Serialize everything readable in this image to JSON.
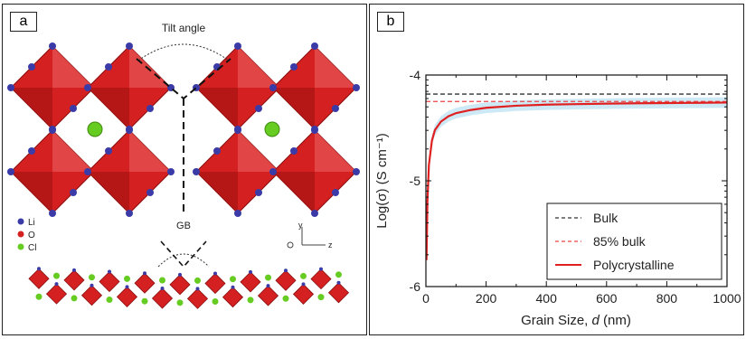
{
  "panel_a": {
    "label": "a",
    "tilt_label": "Tilt angle",
    "gb_label": "GB",
    "axis_y": "y",
    "axis_z": "z",
    "legend": [
      {
        "symbol": "Li",
        "color": "#3b3ba8"
      },
      {
        "symbol": "O",
        "color": "#d42020"
      },
      {
        "symbol": "Cl",
        "color": "#66cc22"
      }
    ]
  },
  "panel_b": {
    "label": "b"
  },
  "chart_data": {
    "type": "line",
    "xlabel_parts": [
      "Grain Size, ",
      "d",
      " (nm)"
    ],
    "ylabel": "Log(σ) (S cm⁻¹)",
    "xlim": [
      0,
      1000
    ],
    "ylim": [
      -6,
      -4
    ],
    "xticks": [
      "0",
      "200",
      "400",
      "600",
      "800",
      "1000"
    ],
    "yticks": [
      "-4",
      "-5",
      "-6"
    ],
    "legend_position": "lower-right",
    "series": [
      {
        "name": "Bulk",
        "style": "dashed",
        "color": "#333333",
        "x": [
          0,
          1000
        ],
        "y": [
          -4.18,
          -4.18
        ]
      },
      {
        "name": "85% bulk",
        "style": "dashed",
        "color": "#ee4444",
        "x": [
          0,
          1000
        ],
        "y": [
          -4.25,
          -4.25
        ]
      },
      {
        "name": "Polycrystalline",
        "style": "solid",
        "color": "#e02020",
        "x": [
          2,
          5,
          10,
          20,
          30,
          50,
          75,
          100,
          150,
          200,
          300,
          400,
          500,
          600,
          700,
          800,
          900,
          1000
        ],
        "y": [
          -5.75,
          -5.2,
          -4.85,
          -4.62,
          -4.52,
          -4.44,
          -4.39,
          -4.36,
          -4.33,
          -4.31,
          -4.29,
          -4.28,
          -4.275,
          -4.27,
          -4.267,
          -4.265,
          -4.263,
          -4.26
        ]
      }
    ],
    "uncertainty_band": {
      "color": "#bfe3f2",
      "offset": 0.05
    }
  }
}
